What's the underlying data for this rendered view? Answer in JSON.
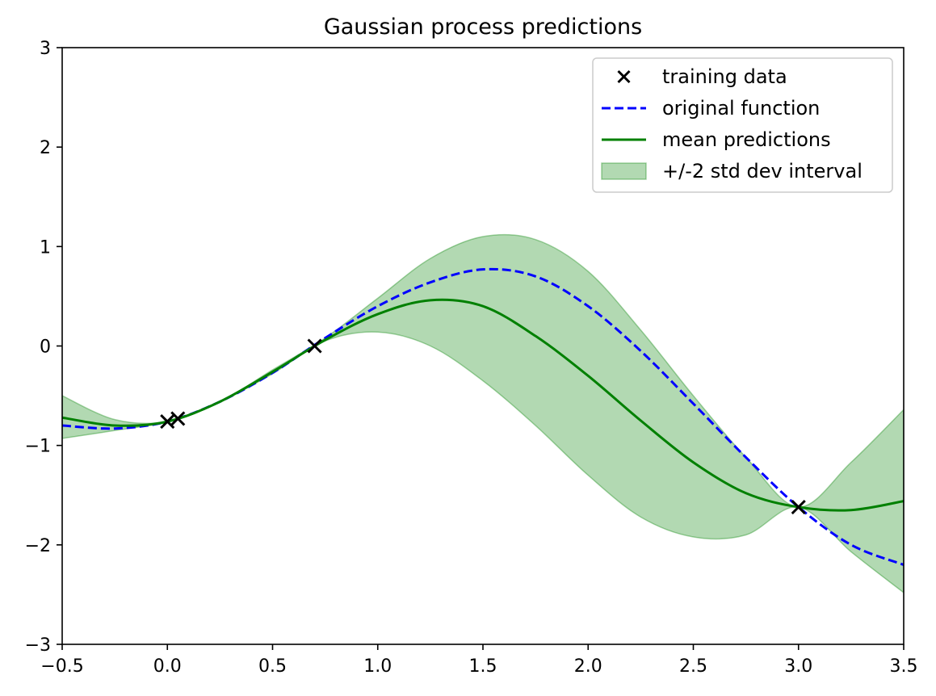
{
  "chart_data": {
    "type": "line",
    "title": "Gaussian process predictions",
    "xlabel": "",
    "ylabel": "",
    "xlim": [
      -0.5,
      3.5
    ],
    "ylim": [
      -3,
      3
    ],
    "xticks": [
      -0.5,
      0.0,
      0.5,
      1.0,
      1.5,
      2.0,
      2.5,
      3.0,
      3.5
    ],
    "xtick_labels": [
      "−0.5",
      "0.0",
      "0.5",
      "1.0",
      "1.5",
      "2.0",
      "2.5",
      "3.0",
      "3.5"
    ],
    "yticks": [
      -3,
      -2,
      -1,
      0,
      1,
      2,
      3
    ],
    "ytick_labels": [
      "−3",
      "−2",
      "−1",
      "0",
      "1",
      "2",
      "3"
    ],
    "grid": false,
    "legend_position": "top-right",
    "series": [
      {
        "name": "training data",
        "kind": "scatter",
        "marker": "x",
        "color": "#000000",
        "x": [
          0.0,
          0.05,
          0.7,
          3.0
        ],
        "y": [
          -0.76,
          -0.73,
          0.0,
          -1.62
        ]
      },
      {
        "name": "original function",
        "kind": "line",
        "style": "dashed",
        "color": "#0000ff",
        "x": [
          -0.5,
          -0.25,
          0.0,
          0.25,
          0.5,
          0.75,
          1.0,
          1.25,
          1.5,
          1.75,
          2.0,
          2.25,
          2.5,
          2.75,
          3.0,
          3.25,
          3.5
        ],
        "y": [
          -0.8,
          -0.83,
          -0.76,
          -0.56,
          -0.27,
          0.08,
          0.4,
          0.64,
          0.77,
          0.7,
          0.4,
          -0.05,
          -0.58,
          -1.12,
          -1.62,
          -2.0,
          -2.2
        ]
      },
      {
        "name": "mean predictions",
        "kind": "line",
        "style": "solid",
        "color": "#008000",
        "x": [
          -0.5,
          -0.25,
          0.0,
          0.25,
          0.5,
          0.75,
          1.0,
          1.25,
          1.5,
          1.75,
          2.0,
          2.25,
          2.5,
          2.75,
          3.0,
          3.25,
          3.5
        ],
        "y": [
          -0.72,
          -0.8,
          -0.76,
          -0.56,
          -0.26,
          0.06,
          0.32,
          0.46,
          0.4,
          0.1,
          -0.3,
          -0.75,
          -1.17,
          -1.48,
          -1.62,
          -1.65,
          -1.56
        ]
      },
      {
        "name": "+/-2 std dev interval",
        "kind": "band",
        "color": "#008000",
        "opacity": 0.3,
        "x": [
          -0.5,
          -0.25,
          0.0,
          0.25,
          0.5,
          0.75,
          1.0,
          1.25,
          1.5,
          1.75,
          2.0,
          2.25,
          2.5,
          2.75,
          3.0,
          3.25,
          3.5
        ],
        "lower": [
          -0.93,
          -0.85,
          -0.76,
          -0.56,
          -0.28,
          0.05,
          0.14,
          0.0,
          -0.35,
          -0.8,
          -1.3,
          -1.72,
          -1.92,
          -1.9,
          -1.62,
          -2.07,
          -2.48
        ],
        "upper": [
          -0.5,
          -0.74,
          -0.76,
          -0.56,
          -0.24,
          0.08,
          0.48,
          0.88,
          1.1,
          1.07,
          0.75,
          0.16,
          -0.5,
          -1.12,
          -1.62,
          -1.17,
          -0.64
        ]
      }
    ]
  }
}
